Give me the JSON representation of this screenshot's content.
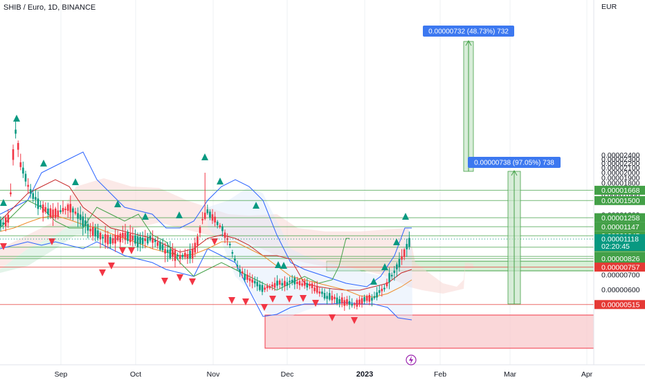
{
  "header": {
    "symbol": "SHIB / Euro, 1D, BINANCE",
    "currency": "EUR"
  },
  "chart_data": {
    "type": "candlestick",
    "title": "SHIB / Euro, 1D, BINANCE",
    "ylabel": "EUR",
    "ylim": [
      4.4e-06,
      2.4e-06
    ],
    "y_ticks": [
      "0.00002400",
      "0.00002300",
      "0.00002200",
      "0.00002100",
      "0.00002000",
      "0.00001900",
      "0.00001800",
      "0.00001700",
      "0.00001600",
      "0.00001300",
      "0.00001200",
      "0.00001000",
      "0.00000700",
      "0.00000600"
    ],
    "x_ticks": [
      {
        "label": "Sep",
        "bold": false
      },
      {
        "label": "Oct",
        "bold": false
      },
      {
        "label": "Nov",
        "bold": false
      },
      {
        "label": "Dec",
        "bold": false
      },
      {
        "label": "2023",
        "bold": true
      },
      {
        "label": "Feb",
        "bold": false
      },
      {
        "label": "Mar",
        "bold": false
      },
      {
        "label": "Apr",
        "bold": false
      }
    ],
    "horizontal_levels": [
      {
        "value": "0.00001668",
        "color": "#43a047"
      },
      {
        "value": "0.00001500",
        "color": "#43a047"
      },
      {
        "value": "0.00001258",
        "color": "#43a047"
      },
      {
        "value": "0.00001147",
        "color": "#43a047"
      },
      {
        "value": "0.00001045",
        "color": "#43a047"
      },
      {
        "value": "0.00000929",
        "color": "#43a047"
      },
      {
        "value": "0.00000845",
        "color": "#43a047"
      },
      {
        "value": "0.00000826",
        "color": "#43a047"
      },
      {
        "value": "0.00000757",
        "color": "#e53935"
      },
      {
        "value": "0.00000515",
        "color": "#e53935"
      }
    ],
    "current_price": {
      "value": "0.00001118",
      "countdown": "02:20:45",
      "color": "#089981"
    },
    "measurements": [
      {
        "text": "0.00000732 (48.73%) 732"
      },
      {
        "text": "0.00000738 (97.05%) 738"
      }
    ],
    "colors": {
      "up": "#089981",
      "down": "#f23645",
      "bollinger": "#2962ff",
      "accent_label": "#3c78f0"
    }
  }
}
